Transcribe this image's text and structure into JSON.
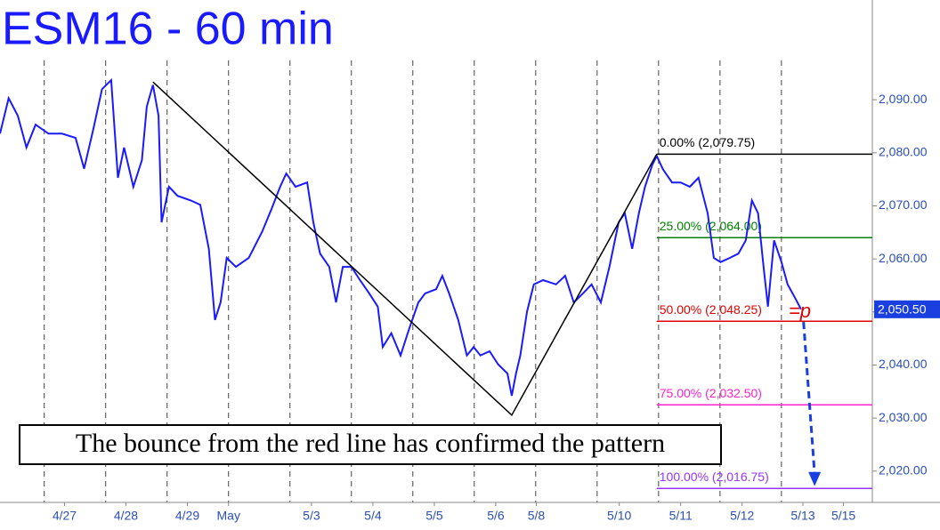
{
  "chart_data": {
    "type": "line",
    "title": "ESM16 - 60 min",
    "annotation": "The bounce from the red line has confirmed the pattern",
    "mark_text": "=p",
    "xlim": [
      -0.72,
      13.48
    ],
    "ylim": [
      2014.1,
      2108.8
    ],
    "xticks": [
      {
        "value": 0.33,
        "label": "4/27"
      },
      {
        "value": 1.33,
        "label": "4/28"
      },
      {
        "value": 2.33,
        "label": "4/29"
      },
      {
        "value": 3.0,
        "label": "May"
      },
      {
        "value": 4.35,
        "label": "5/3"
      },
      {
        "value": 5.35,
        "label": "5/4"
      },
      {
        "value": 6.35,
        "label": "5/5"
      },
      {
        "value": 7.35,
        "label": "5/6"
      },
      {
        "value": 8.01,
        "label": "5/8"
      },
      {
        "value": 9.36,
        "label": "5/10"
      },
      {
        "value": 10.36,
        "label": "5/11"
      },
      {
        "value": 11.36,
        "label": "5/12"
      },
      {
        "value": 12.35,
        "label": "5/13"
      },
      {
        "value": 13.01,
        "label": "5/15"
      }
    ],
    "session_lines": [
      0,
      1,
      2,
      3,
      4,
      5,
      6,
      7,
      8,
      9,
      10,
      11,
      12
    ],
    "yticks": [
      {
        "value": 2020,
        "label": "2,020.00"
      },
      {
        "value": 2030,
        "label": "2,030.00"
      },
      {
        "value": 2040,
        "label": "2,040.00"
      },
      {
        "value": 2050,
        "label": "2,050.00"
      },
      {
        "value": 2060,
        "label": "2,060.00"
      },
      {
        "value": 2070,
        "label": "2,070.00"
      },
      {
        "value": 2080,
        "label": "2,080.00"
      },
      {
        "value": 2090,
        "label": "2,090.00"
      }
    ],
    "last_price": {
      "value": 2050.5,
      "label": "2,050.50"
    },
    "series": [
      {
        "name": "ESM16",
        "color": "#1a1aff",
        "x": [
          -0.72,
          -0.58,
          -0.43,
          -0.29,
          -0.14,
          0.07,
          0.29,
          0.51,
          0.65,
          0.8,
          0.94,
          1.09,
          1.2,
          1.3,
          1.45,
          1.59,
          1.67,
          1.77,
          1.86,
          1.91,
          2.03,
          2.17,
          2.39,
          2.54,
          2.68,
          2.78,
          2.87,
          2.97,
          3.12,
          3.33,
          3.55,
          3.7,
          3.84,
          3.94,
          4.09,
          4.28,
          4.38,
          4.49,
          4.64,
          4.75,
          4.86,
          5.0,
          5.14,
          5.29,
          5.43,
          5.51,
          5.65,
          5.8,
          5.94,
          6.09,
          6.2,
          6.38,
          6.48,
          6.59,
          6.74,
          6.88,
          6.99,
          7.1,
          7.25,
          7.39,
          7.54,
          7.61,
          7.68,
          7.75,
          7.86,
          7.97,
          8.12,
          8.33,
          8.48,
          8.62,
          8.77,
          8.91,
          9.06,
          9.2,
          9.35,
          9.45,
          9.57,
          9.68,
          9.78,
          9.9,
          9.97,
          10.07,
          10.22,
          10.36,
          10.51,
          10.65,
          10.8,
          10.9,
          11.01,
          11.16,
          11.3,
          11.42,
          11.52,
          11.62,
          11.71,
          11.78,
          11.88,
          12.0,
          12.1,
          12.22,
          12.32
        ],
        "values": [
          2083.6,
          2090.3,
          2087,
          2081,
          2085.3,
          2083.6,
          2083.6,
          2082.8,
          2077,
          2084.5,
          2092,
          2093.7,
          2075.3,
          2081,
          2073.6,
          2078.6,
          2088.7,
          2092.8,
          2087,
          2066.9,
          2073.6,
          2071.9,
          2071,
          2070.2,
          2061.9,
          2048.5,
          2051.8,
          2060.2,
          2058.5,
          2060.2,
          2065.2,
          2069.4,
          2073.6,
          2076.1,
          2073.6,
          2074.4,
          2066.9,
          2061,
          2058.5,
          2051.8,
          2058.5,
          2058.5,
          2056,
          2053.5,
          2051,
          2043.4,
          2046,
          2041.8,
          2046.8,
          2051.8,
          2053.5,
          2054.3,
          2056.8,
          2053.5,
          2048.5,
          2041.8,
          2043.4,
          2041.8,
          2042.6,
          2040.1,
          2038.4,
          2034.2,
          2038.4,
          2041.8,
          2050.1,
          2055.2,
          2056,
          2055.2,
          2056.8,
          2051.8,
          2053.5,
          2055.2,
          2051.8,
          2058.5,
          2066.9,
          2068.6,
          2061.9,
          2068.6,
          2073.6,
          2077.8,
          2079.4,
          2076.9,
          2074.4,
          2074.4,
          2073.6,
          2075.3,
          2068.6,
          2060.2,
          2059.4,
          2060.2,
          2061,
          2063.5,
          2071,
          2068.6,
          2058.5,
          2051,
          2063.5,
          2059.4,
          2055.2,
          2052.7,
          2050.5
        ]
      }
    ],
    "pattern_line": {
      "color": "#000000",
      "x": [
        1.77,
        7.61,
        9.97
      ],
      "values": [
        2093.35,
        2030.55,
        2079.75
      ]
    },
    "fib_start": 9.97,
    "fib_levels": [
      {
        "value": 2079.75,
        "label": "0.00% (2,079.75)",
        "color": "#000000"
      },
      {
        "value": 2064.0,
        "label": "25.00% (2,064.00)",
        "color": "#008000"
      },
      {
        "value": 2048.25,
        "label": "50.00% (2,048.25)",
        "color": "#e00000"
      },
      {
        "value": 2032.5,
        "label": "75.00% (2,032.50)",
        "color": "#ff22cc"
      },
      {
        "value": 2016.75,
        "label": "100.00% (2,016.75)",
        "color": "#9933ff"
      }
    ],
    "arrow": {
      "color": "#1a3fe0",
      "x": [
        12.36,
        12.54
      ],
      "values": [
        2048.1,
        2017.5
      ]
    }
  }
}
